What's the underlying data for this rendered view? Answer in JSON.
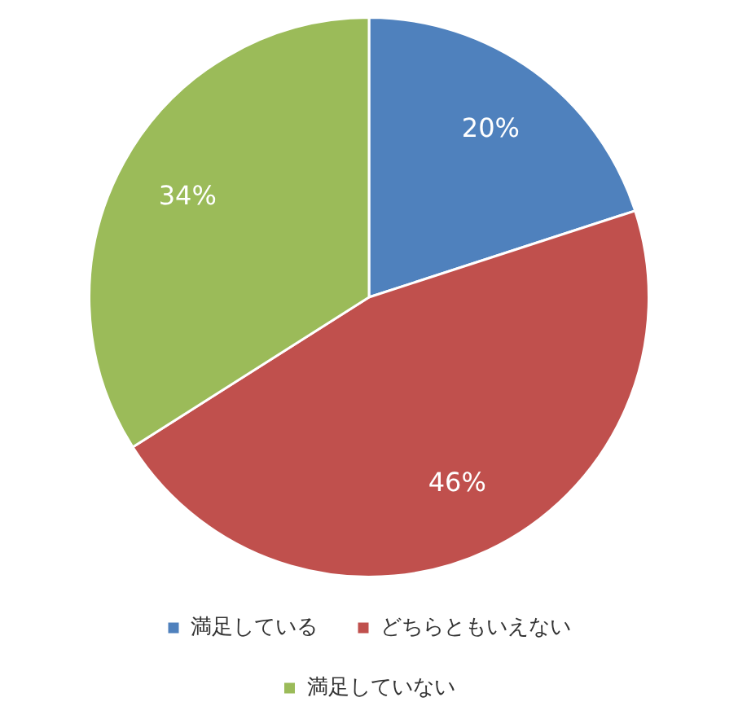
{
  "chart_data": {
    "type": "pie",
    "categories": [
      "満足している",
      "どちらともいえない",
      "満足していない"
    ],
    "values": [
      20,
      46,
      34
    ],
    "colors": [
      "#4f81bd",
      "#c0504d",
      "#9bbb59"
    ],
    "value_labels": [
      "20%",
      "46%",
      "34%"
    ],
    "legend": "bottom"
  }
}
